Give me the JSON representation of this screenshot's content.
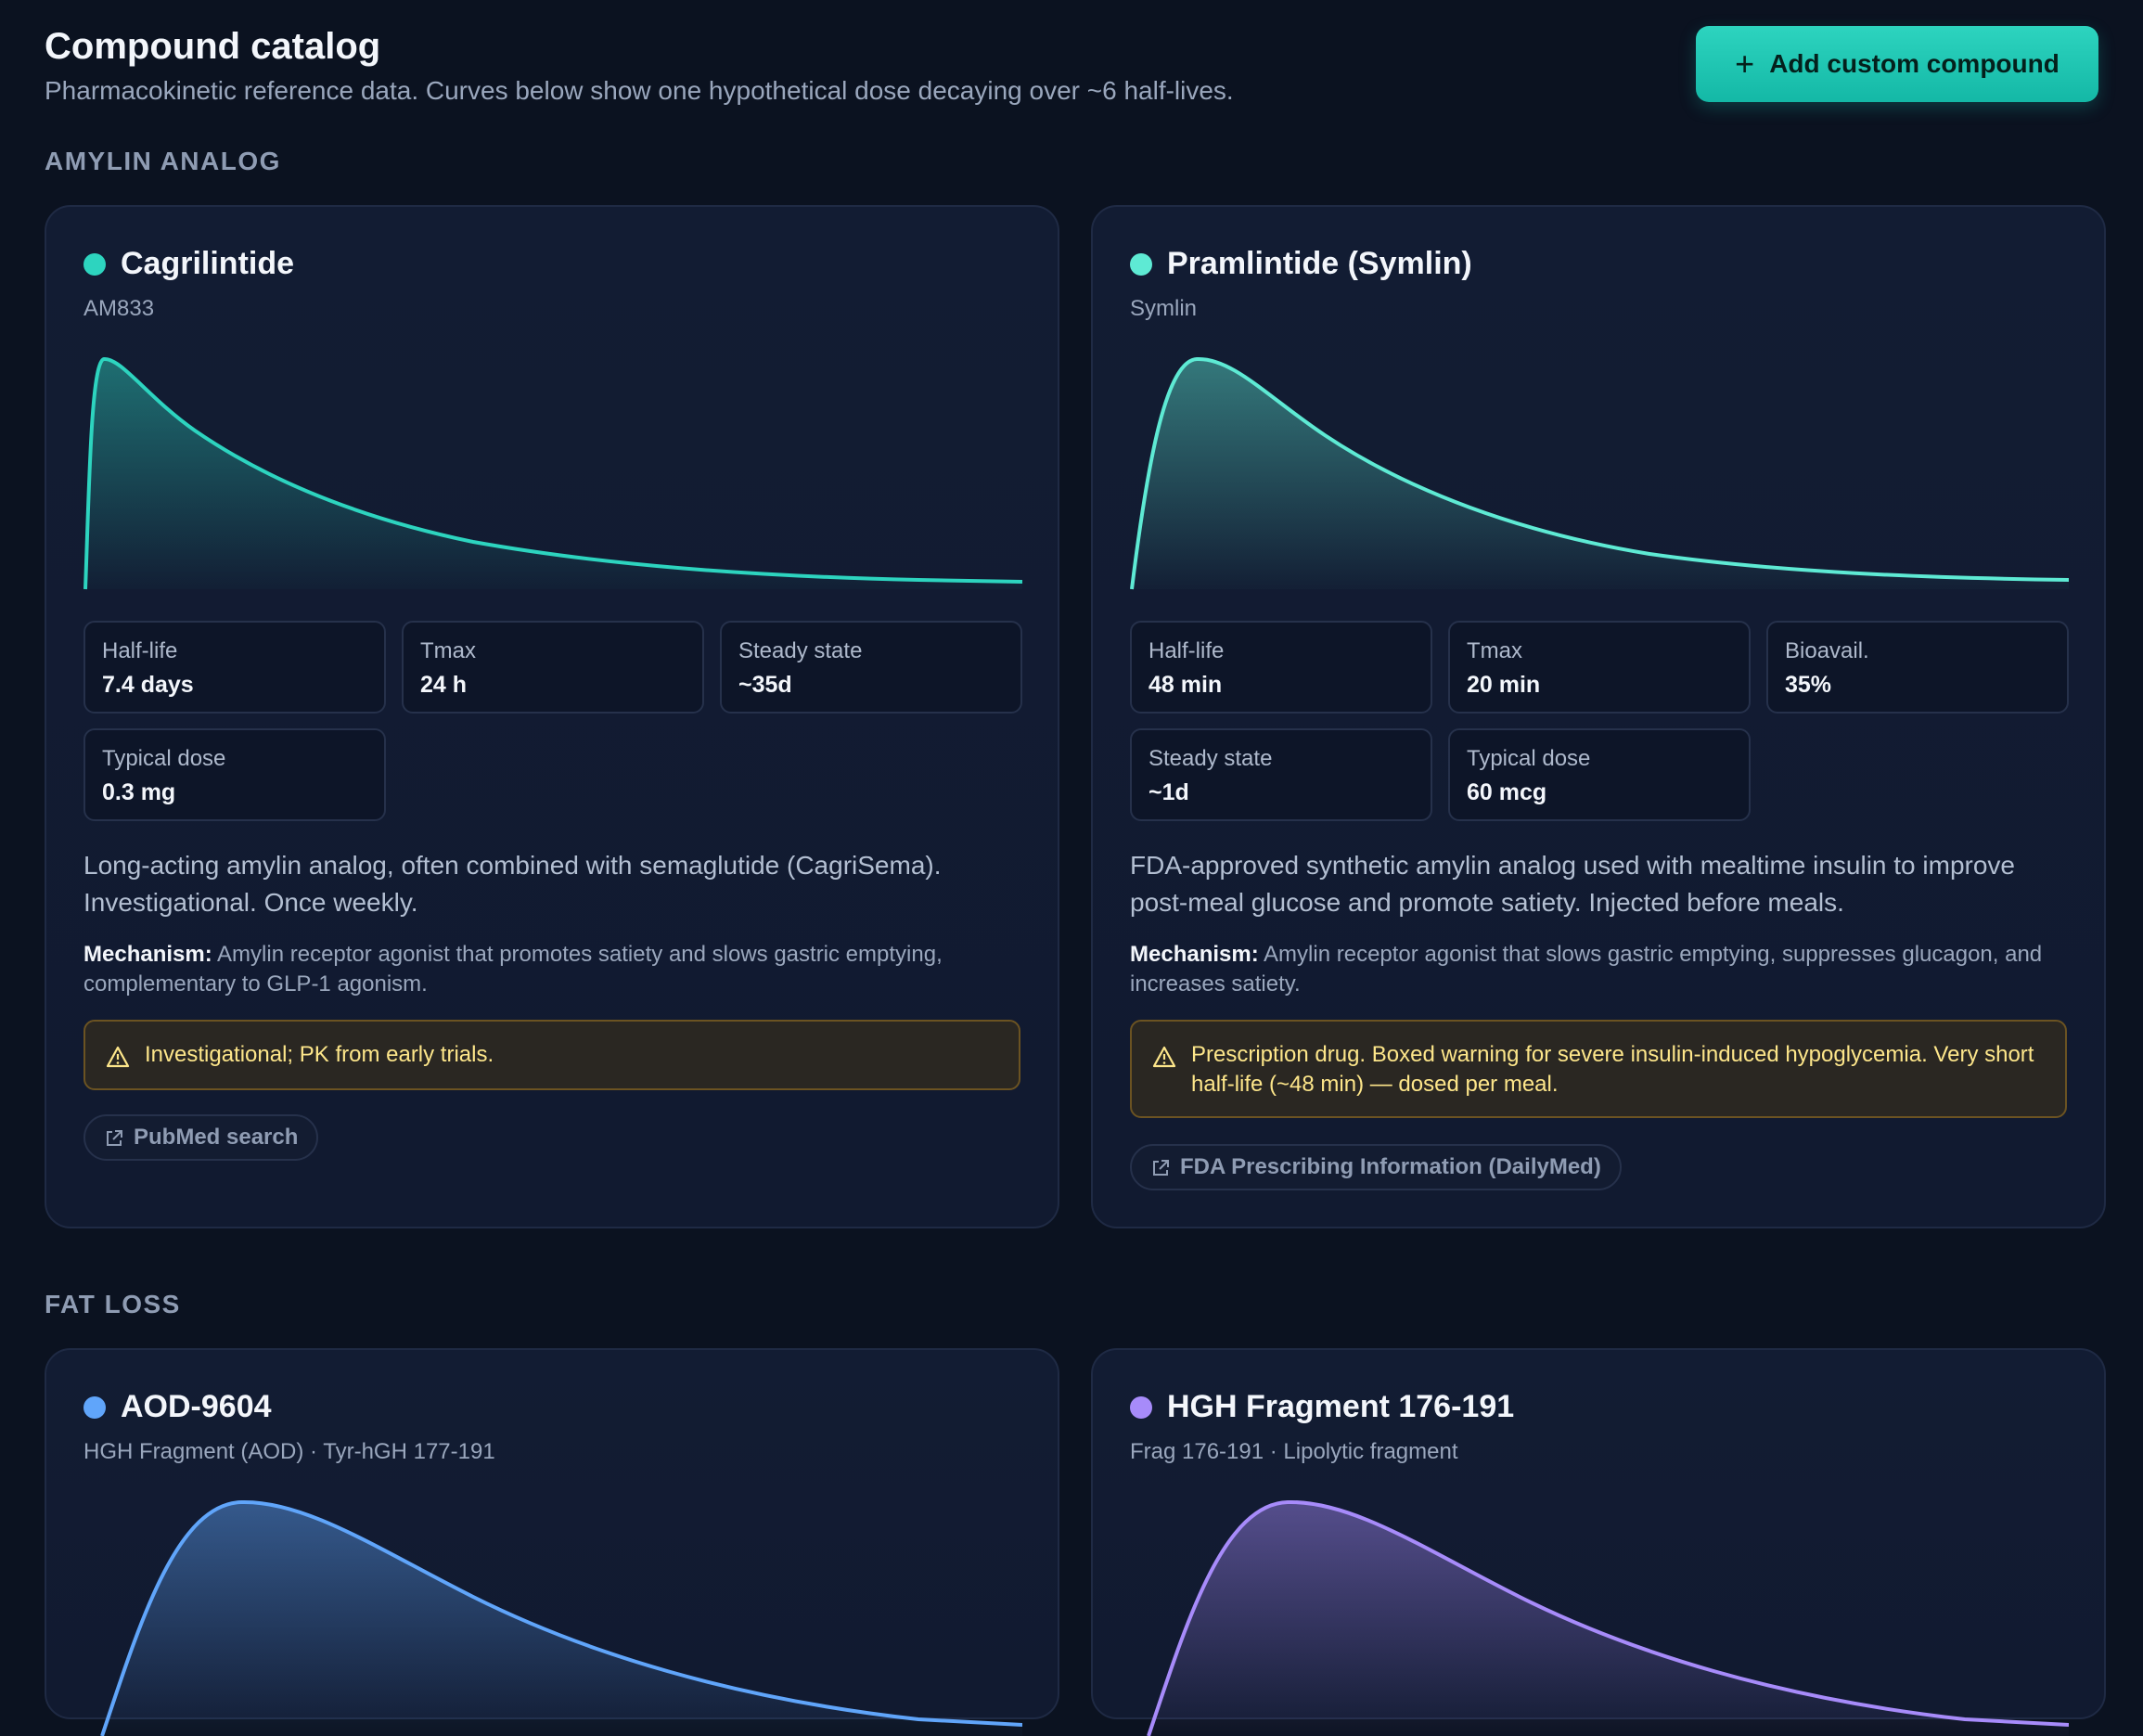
{
  "header": {
    "title": "Compound catalog",
    "subtitle": "Pharmacokinetic reference data. Curves below show one hypothetical dose decaying over ~6 half-lives.",
    "add_button": "Add custom compound"
  },
  "sections": [
    {
      "title": "AMYLIN ANALOG",
      "cards": [
        {
          "name": "Cagrilintide",
          "alias": "AM833",
          "color": "#2dd4bf",
          "stats": [
            {
              "label": "Half-life",
              "value": "7.4 days"
            },
            {
              "label": "Tmax",
              "value": "24 h"
            },
            {
              "label": "Steady state",
              "value": "~35d"
            },
            {
              "label": "Typical dose",
              "value": "0.3 mg"
            }
          ],
          "description": "Long-acting amylin analog, often combined with semaglutide (CagriSema). Investigational. Once weekly.",
          "mechanism_label": "Mechanism:",
          "mechanism": "Amylin receptor agonist that promotes satiety and slows gastric emptying, complementary to GLP-1 agonism.",
          "warning": "Investigational; PK from early trials.",
          "link": "PubMed search"
        },
        {
          "name": "Pramlintide (Symlin)",
          "alias": "Symlin",
          "color": "#5eead4",
          "stats": [
            {
              "label": "Half-life",
              "value": "48 min"
            },
            {
              "label": "Tmax",
              "value": "20 min"
            },
            {
              "label": "Bioavail.",
              "value": "35%"
            },
            {
              "label": "Steady state",
              "value": "~1d"
            },
            {
              "label": "Typical dose",
              "value": "60 mcg"
            }
          ],
          "description": "FDA-approved synthetic amylin analog used with mealtime insulin to improve post-meal glucose and promote satiety. Injected before meals.",
          "mechanism_label": "Mechanism:",
          "mechanism": "Amylin receptor agonist that slows gastric emptying, suppresses glucagon, and increases satiety.",
          "warning": "Prescription drug. Boxed warning for severe insulin-induced hypoglycemia. Very short half-life (~48 min) — dosed per meal.",
          "link": "FDA Prescribing Information (DailyMed)"
        }
      ]
    },
    {
      "title": "FAT LOSS",
      "cards": [
        {
          "name": "AOD-9604",
          "alias": "HGH Fragment (AOD) · Tyr-hGH 177-191",
          "color": "#60a5fa"
        },
        {
          "name": "HGH Fragment 176-191",
          "alias": "Frag 176-191 · Lipolytic fragment",
          "color": "#a78bfa"
        }
      ]
    }
  ]
}
